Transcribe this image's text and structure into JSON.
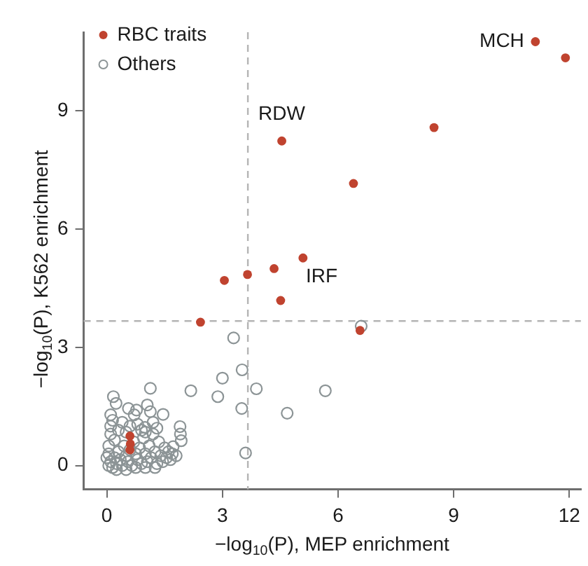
{
  "chart_data": {
    "type": "scatter",
    "xlabel": "−log$_{10}$(P), MEP enrichment",
    "ylabel": "−log$_{10}$(P), K562 enrichment",
    "xlim": [
      -0.6,
      12.3
    ],
    "ylim": [
      -0.6,
      11
    ],
    "xticks": [
      0,
      3,
      6,
      9,
      12
    ],
    "yticks": [
      0,
      3,
      6,
      9
    ],
    "grid": false,
    "legend": "top left",
    "marker": "circle",
    "ref_lines": [
      {
        "axis": "x",
        "value": 3.66,
        "color": "#b4b4b4",
        "line_style": "dashed"
      },
      {
        "axis": "y",
        "value": 3.67,
        "color": "#b4b4b4",
        "line_style": "dashed"
      }
    ],
    "annotations": [
      {
        "text": "MCH",
        "x": 11.12,
        "y": 10.76
      },
      {
        "text": "RDW",
        "x": 4.54,
        "y": 8.24
      },
      {
        "text": "IRF",
        "x": 4.51,
        "y": 4.19
      }
    ],
    "series": [
      {
        "name": "Others",
        "color": "#8c9496",
        "x": [
          3.29,
          6.6,
          3.51,
          3.0,
          3.88,
          5.67,
          2.18,
          1.13,
          2.88,
          3.5,
          4.68,
          3.6,
          0.17,
          0.24,
          0.56,
          0.77,
          1.05,
          1.13,
          1.46,
          0.1,
          0.71,
          1.9,
          1.91,
          1.93,
          0.99,
          1.72,
          0.05,
          0.1,
          0.15,
          0.2,
          0.25,
          0.3,
          0.35,
          0.4,
          0.45,
          0.5,
          0.55,
          0.6,
          0.65,
          0.7,
          0.75,
          0.8,
          0.85,
          0.9,
          0.95,
          1.0,
          1.05,
          1.1,
          1.15,
          1.2,
          1.25,
          1.3,
          1.35,
          1.4,
          1.45,
          1.5,
          1.55,
          1.6,
          1.65,
          1.7,
          1.8,
          0.05,
          0.1,
          0.1,
          0.15,
          0.05,
          0.2,
          0.3,
          0.4,
          0.5,
          0.6,
          0.8,
          0.9,
          1.0,
          1.2,
          1.3,
          0.0,
          0.25,
          0.5,
          0.75,
          1.0,
          1.25
        ],
        "values": [
          3.24,
          3.54,
          2.43,
          2.22,
          1.95,
          1.9,
          1.9,
          1.96,
          1.75,
          1.45,
          1.33,
          0.32,
          1.75,
          1.58,
          1.45,
          1.41,
          1.54,
          1.37,
          1.3,
          1.29,
          1.29,
          0.99,
          0.8,
          0.63,
          0.97,
          0.48,
          0.0,
          0.1,
          -0.05,
          0.2,
          0.05,
          0.35,
          0.15,
          0.0,
          0.5,
          0.25,
          0.1,
          0.4,
          0.0,
          0.6,
          0.3,
          0.15,
          0.45,
          0.05,
          0.7,
          0.3,
          0.1,
          0.5,
          0.2,
          0.8,
          0.35,
          0.05,
          0.6,
          0.25,
          0.1,
          0.45,
          0.2,
          0.35,
          0.15,
          0.3,
          0.25,
          0.5,
          0.8,
          1.0,
          1.15,
          0.3,
          0.65,
          0.9,
          1.1,
          0.85,
          1.0,
          1.05,
          0.9,
          0.85,
          1.1,
          0.95,
          0.2,
          -0.1,
          -0.1,
          -0.05,
          -0.05,
          -0.05
        ]
      },
      {
        "name": "RBC traits",
        "color": "#c0432f",
        "x": [
          11.12,
          11.9,
          4.54,
          8.49,
          6.4,
          5.09,
          4.34,
          3.65,
          3.05,
          4.51,
          2.43,
          6.57,
          0.61,
          0.6,
          0.6
        ],
        "values": [
          10.76,
          10.35,
          8.24,
          8.58,
          7.16,
          5.27,
          5.0,
          4.85,
          4.7,
          4.19,
          3.64,
          3.43,
          0.55,
          0.75,
          0.4
        ]
      }
    ]
  }
}
